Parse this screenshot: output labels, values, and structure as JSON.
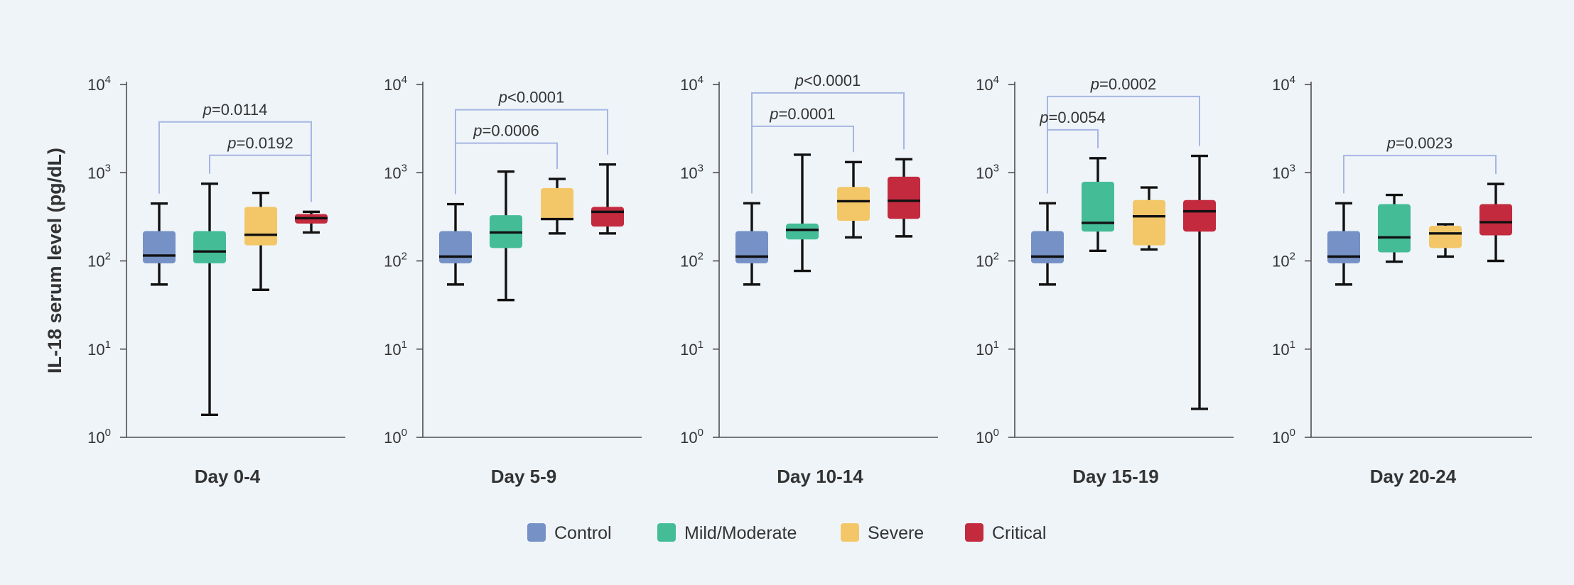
{
  "chart_data": {
    "type": "box",
    "ylabel": "IL-18 serum level (pg/dL)",
    "yscale": "log10",
    "ylim": [
      1,
      10000
    ],
    "yticks": [
      {
        "value": 1,
        "base": "10",
        "exp": "0"
      },
      {
        "value": 10,
        "base": "10",
        "exp": "1"
      },
      {
        "value": 100,
        "base": "10",
        "exp": "2"
      },
      {
        "value": 1000,
        "base": "10",
        "exp": "3"
      },
      {
        "value": 10000,
        "base": "10",
        "exp": "4"
      }
    ],
    "groups": [
      {
        "name": "Control",
        "color": "#7591c5"
      },
      {
        "name": "Mild/Moderate",
        "color": "#44bd97"
      },
      {
        "name": "Severe",
        "color": "#f3c768"
      },
      {
        "name": "Critical",
        "color": "#c32a3e"
      }
    ],
    "panels": [
      {
        "label": "Day 0-4",
        "boxes": [
          {
            "min": 54,
            "q1": 94,
            "median": 115,
            "q3": 218,
            "max": 447
          },
          {
            "min": 1.8,
            "q1": 94,
            "median": 128,
            "q3": 218,
            "max": 750
          },
          {
            "min": 47,
            "q1": 150,
            "median": 198,
            "q3": 410,
            "max": 590
          },
          {
            "min": 210,
            "q1": 265,
            "median": 305,
            "q3": 340,
            "max": 360
          }
        ],
        "brackets": [
          {
            "from": 0,
            "to": 3,
            "prefix": "p",
            "text": "=0.0114"
          },
          {
            "from": 1,
            "to": 3,
            "prefix": "p",
            "text": "=0.0192"
          }
        ]
      },
      {
        "label": "Day 5-9",
        "boxes": [
          {
            "min": 54,
            "q1": 94,
            "median": 112,
            "q3": 218,
            "max": 440
          },
          {
            "min": 36,
            "q1": 140,
            "median": 210,
            "q3": 330,
            "max": 1030
          },
          {
            "min": 205,
            "q1": 290,
            "median": 298,
            "q3": 670,
            "max": 850
          },
          {
            "min": 205,
            "q1": 245,
            "median": 360,
            "q3": 410,
            "max": 1240
          }
        ],
        "brackets": [
          {
            "from": 0,
            "to": 3,
            "prefix": "p",
            "text": "<0.0001"
          },
          {
            "from": 0,
            "to": 2,
            "prefix": "p",
            "text": "=0.0006"
          }
        ]
      },
      {
        "label": "Day 10-14",
        "boxes": [
          {
            "min": 54,
            "q1": 94,
            "median": 112,
            "q3": 218,
            "max": 450
          },
          {
            "min": 77,
            "q1": 175,
            "median": 225,
            "q3": 265,
            "max": 1600
          },
          {
            "min": 185,
            "q1": 285,
            "median": 475,
            "q3": 690,
            "max": 1320
          },
          {
            "min": 190,
            "q1": 300,
            "median": 480,
            "q3": 900,
            "max": 1420
          }
        ],
        "brackets": [
          {
            "from": 0,
            "to": 3,
            "prefix": "p",
            "text": "<0.0001"
          },
          {
            "from": 0,
            "to": 2,
            "prefix": "p",
            "text": "=0.0001"
          }
        ]
      },
      {
        "label": "Day 15-19",
        "boxes": [
          {
            "min": 54,
            "q1": 94,
            "median": 112,
            "q3": 218,
            "max": 450
          },
          {
            "min": 130,
            "q1": 215,
            "median": 270,
            "q3": 790,
            "max": 1460
          },
          {
            "min": 135,
            "q1": 150,
            "median": 320,
            "q3": 490,
            "max": 680
          },
          {
            "min": 2.1,
            "q1": 215,
            "median": 365,
            "q3": 490,
            "max": 1550
          }
        ],
        "brackets": [
          {
            "from": 0,
            "to": 3,
            "prefix": "p",
            "text": "=0.0002"
          },
          {
            "from": 0,
            "to": 1,
            "prefix": "p",
            "text": "=0.0054"
          }
        ]
      },
      {
        "label": "Day 20-24",
        "boxes": [
          {
            "min": 54,
            "q1": 94,
            "median": 112,
            "q3": 218,
            "max": 450
          },
          {
            "min": 98,
            "q1": 125,
            "median": 185,
            "q3": 440,
            "max": 560
          },
          {
            "min": 112,
            "q1": 140,
            "median": 205,
            "q3": 250,
            "max": 260
          },
          {
            "min": 100,
            "q1": 195,
            "median": 275,
            "q3": 440,
            "max": 745
          }
        ],
        "brackets": [
          {
            "from": 0,
            "to": 3,
            "prefix": "p",
            "text": "=0.0023"
          }
        ]
      }
    ],
    "legend_position": "bottom-center"
  }
}
